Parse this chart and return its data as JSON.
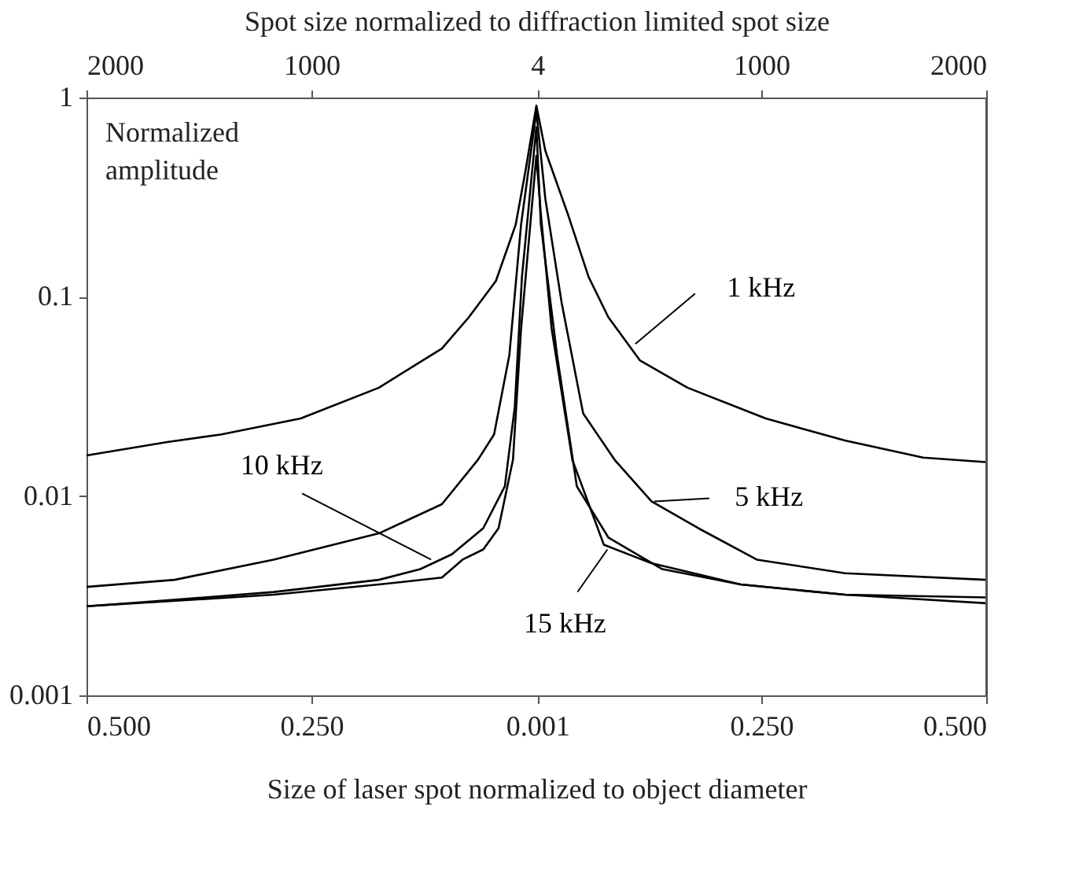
{
  "chart_data": {
    "type": "line",
    "title": "Spot size normalized to diffraction limited spot size",
    "xlabel": "Size of laser spot normalized to object diameter",
    "ylabel": "Normalized amplitude",
    "xlim": [
      -0.5,
      0.5
    ],
    "xticks": [
      {
        "value": -0.5,
        "label": "0.500"
      },
      {
        "value": -0.25,
        "label": "0.250"
      },
      {
        "value": 0.001,
        "label": "0.001"
      },
      {
        "value": 0.25,
        "label": "0.250"
      },
      {
        "value": 0.5,
        "label": "0.500"
      }
    ],
    "x2lim": [
      -2000,
      2000
    ],
    "x2ticks": [
      {
        "value": -2000,
        "label": "2000"
      },
      {
        "value": -1000,
        "label": "1000"
      },
      4,
      1000,
      2000
    ],
    "ylim": [
      0.001,
      1
    ],
    "yticks": [
      0.001,
      0.01,
      0.1,
      1
    ],
    "log": "y",
    "grid": false,
    "annotations": [
      {
        "text": "1 kHz",
        "x": 0.11,
        "y": 0.058
      },
      {
        "text": "5 kHz",
        "x": 0.131,
        "y": 0.0094
      },
      {
        "text": "10 kHz",
        "x": -0.117,
        "y": 0.0048
      },
      {
        "text": "15 kHz",
        "x": 0.079,
        "y": 0.0054
      }
    ],
    "series": [
      {
        "color": "#000000",
        "x": [
          -0.5,
          -0.409,
          -0.35,
          -0.262,
          -0.175,
          -0.105,
          -0.075,
          -0.045,
          -0.023,
          -0.012,
          0,
          0.01,
          0.035,
          0.058,
          0.08,
          0.115,
          0.168,
          0.255,
          0.343,
          0.43,
          0.5
        ],
        "values": [
          0.016,
          0.0187,
          0.0204,
          0.0245,
          0.035,
          0.055,
          0.079,
          0.12,
          0.23,
          0.43,
          0.91,
          0.54,
          0.26,
          0.126,
          0.079,
          0.048,
          0.035,
          0.0245,
          0.019,
          0.0156,
          0.0148
        ]
      },
      {
        "color": "#000000",
        "x": [
          -0.5,
          -0.402,
          -0.292,
          -0.175,
          -0.105,
          -0.065,
          -0.047,
          -0.03,
          -0.017,
          0,
          0.01,
          0.028,
          0.052,
          0.087,
          0.128,
          0.18,
          0.245,
          0.343,
          0.5
        ],
        "values": [
          0.0035,
          0.0038,
          0.0048,
          0.0065,
          0.0091,
          0.0152,
          0.0204,
          0.051,
          0.23,
          0.85,
          0.31,
          0.094,
          0.026,
          0.0152,
          0.0094,
          0.0069,
          0.0048,
          0.0041,
          0.0038
        ]
      },
      {
        "color": "#000000",
        "x": [
          -0.5,
          -0.409,
          -0.292,
          -0.175,
          -0.129,
          -0.094,
          -0.059,
          -0.035,
          -0.024,
          -0.016,
          0,
          0.005,
          0.023,
          0.045,
          0.08,
          0.14,
          0.227,
          0.343,
          0.5
        ],
        "values": [
          0.0028,
          0.003,
          0.0033,
          0.0038,
          0.0043,
          0.0051,
          0.0069,
          0.0112,
          0.028,
          0.126,
          0.71,
          0.23,
          0.051,
          0.0112,
          0.0062,
          0.0043,
          0.0036,
          0.0032,
          0.0031
        ]
      },
      {
        "color": "#000000",
        "x": [
          -0.5,
          -0.292,
          -0.175,
          -0.105,
          -0.082,
          -0.059,
          -0.042,
          -0.026,
          -0.017,
          0,
          0.005,
          0.017,
          0.04,
          0.075,
          0.128,
          0.227,
          0.343,
          0.5
        ],
        "values": [
          0.0028,
          0.0032,
          0.0036,
          0.0039,
          0.0048,
          0.0054,
          0.0069,
          0.0152,
          0.069,
          0.51,
          0.26,
          0.069,
          0.0152,
          0.0057,
          0.0046,
          0.0036,
          0.0032,
          0.0029
        ]
      }
    ]
  }
}
